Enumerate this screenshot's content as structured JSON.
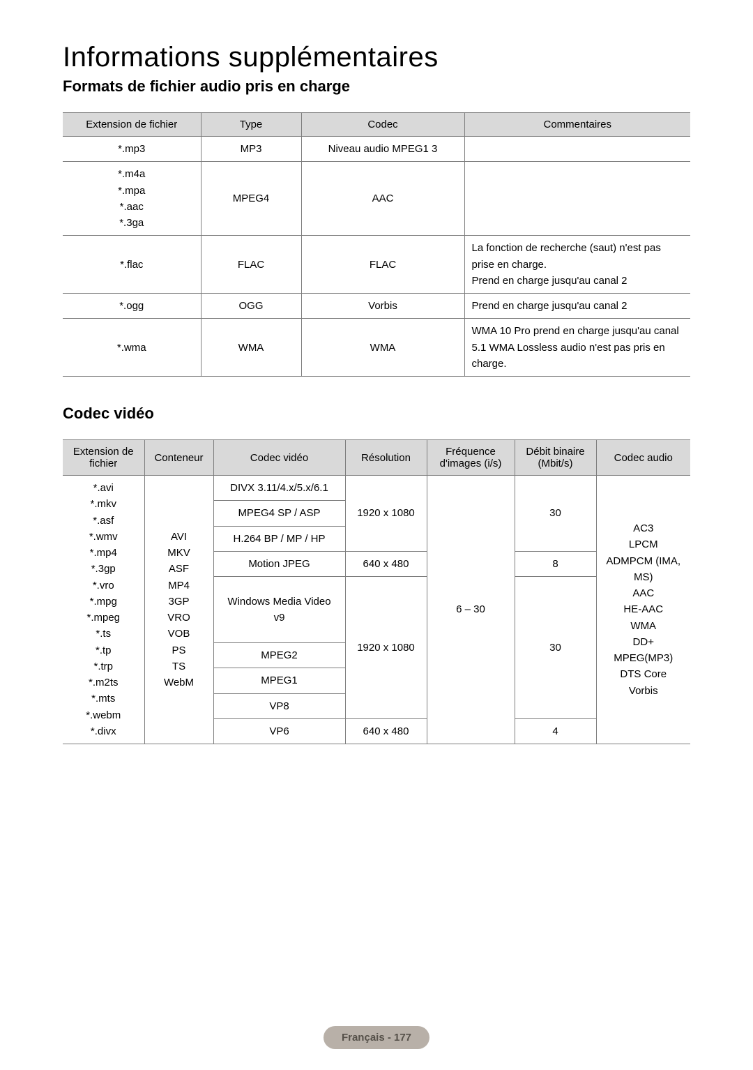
{
  "page_title": "Informations supplémentaires",
  "audio_section": {
    "heading": "Formats de fichier audio pris en charge",
    "columns": [
      "Extension de fichier",
      "Type",
      "Codec",
      "Commentaires"
    ],
    "rows": [
      {
        "ext": "*.mp3",
        "type": "MP3",
        "codec": "Niveau audio MPEG1 3",
        "comment": ""
      },
      {
        "ext": "*.m4a\n*.mpa\n*.aac\n*.3ga",
        "type": "MPEG4",
        "codec": "AAC",
        "comment": ""
      },
      {
        "ext": "*.flac",
        "type": "FLAC",
        "codec": "FLAC",
        "comment": "La fonction de recherche (saut) n'est pas prise en charge.\nPrend en charge jusqu'au canal 2"
      },
      {
        "ext": "*.ogg",
        "type": "OGG",
        "codec": "Vorbis",
        "comment": "Prend en charge jusqu'au canal 2"
      },
      {
        "ext": "*.wma",
        "type": "WMA",
        "codec": "WMA",
        "comment": "WMA 10 Pro prend en charge jusqu'au canal 5.1 WMA Lossless audio n'est pas pris en charge."
      }
    ]
  },
  "video_section": {
    "heading": "Codec vidéo",
    "columns": [
      "Extension de fichier",
      "Conteneur",
      "Codec vidéo",
      "Résolution",
      "Fréquence d'images (i/s)",
      "Débit binaire (Mbit/s)",
      "Codec audio"
    ],
    "extensions": "*.avi\n*.mkv\n*.asf\n*.wmv\n*.mp4\n*.3gp\n*.vro\n*.mpg\n*.mpeg\n*.ts\n*.tp\n*.trp\n*.m2ts\n*.mts\n*.webm\n*.divx",
    "containers": "AVI\nMKV\nASF\nMP4\n3GP\nVRO\nVOB\nPS\nTS\nWebM",
    "codec_rows": [
      {
        "codec": "DIVX 3.11/4.x/5.x/6.1"
      },
      {
        "codec": "MPEG4 SP / ASP"
      },
      {
        "codec": "H.264 BP / MP / HP"
      },
      {
        "codec": "Motion JPEG"
      },
      {
        "codec": "Windows Media Video v9"
      },
      {
        "codec": "MPEG2"
      },
      {
        "codec": "MPEG1"
      },
      {
        "codec": "VP8"
      },
      {
        "codec": "VP6"
      }
    ],
    "res_1": "1920 x 1080",
    "res_2": "640 x 480",
    "res_3": "1920 x 1080",
    "res_4": "640 x 480",
    "fps": "6 – 30",
    "bit_1": "30",
    "bit_2": "8",
    "bit_3": "30",
    "bit_4": "4",
    "audio_codecs": "AC3\nLPCM\nADMPCM (IMA, MS)\nAAC\nHE-AAC\nWMA\nDD+\nMPEG(MP3)\nDTS Core\nVorbis"
  },
  "footer": "Français - 177",
  "style": {
    "header_bg": "#d9d9d9",
    "border_color": "#7d7d7d",
    "page_bg": "#ffffff",
    "footer_bg": "#b8b0a8",
    "footer_text": "#555049",
    "h1_fontsize": 40,
    "h2_fontsize": 22,
    "body_fontsize": 15
  }
}
